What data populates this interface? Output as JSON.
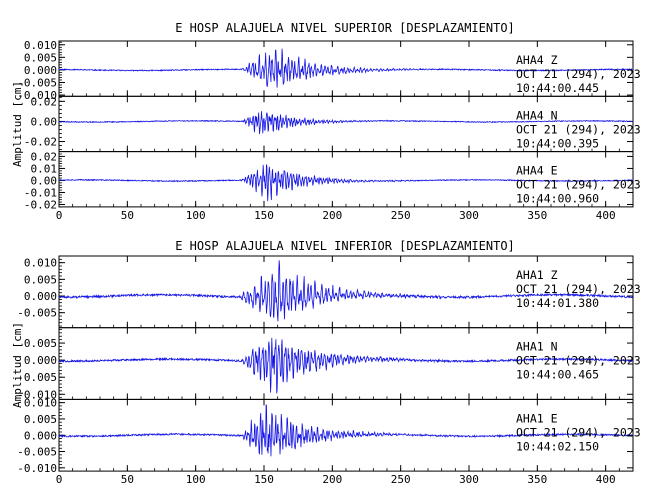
{
  "chart_data": [
    {
      "type": "line",
      "title": "E HOSP ALAJUELA NIVEL SUPERIOR [DESPLAZAMIENTO]",
      "ylabel": "Amplitud [cm]",
      "xlabel": "",
      "xlim": [
        0,
        420
      ],
      "x_ticks": [
        0,
        50,
        100,
        150,
        200,
        250,
        300,
        350,
        400
      ],
      "grid": false,
      "panels": [
        {
          "station": "AHA4",
          "component": "Z",
          "date": "OCT 21 (294), 2023",
          "time": "10:44:00.445",
          "ylim": [
            -0.0105,
            0.0115
          ],
          "y_ticks": [
            -0.01,
            -0.005,
            0.0,
            0.005,
            0.01
          ],
          "y_tick_labels": [
            "-0.010",
            "-0.005",
            "0.000",
            "0.005",
            "0.010"
          ],
          "signal": {
            "seed": 11,
            "noise": 0.0004,
            "peak": 0.0085,
            "onset": 133,
            "peak_t": 158,
            "decay": 28,
            "period": 2.4
          }
        },
        {
          "station": "AHA4",
          "component": "N",
          "date": "OCT 21 (294), 2023",
          "time": "10:44:00.395",
          "ylim": [
            -0.03,
            0.025
          ],
          "y_ticks": [
            -0.02,
            0.0,
            0.02
          ],
          "y_tick_labels": [
            "-0.02",
            "0.00",
            "0.02"
          ],
          "signal": {
            "seed": 23,
            "noise": 0.0009,
            "peak": 0.014,
            "onset": 133,
            "peak_t": 150,
            "decay": 22,
            "period": 2.0
          }
        },
        {
          "station": "AHA4",
          "component": "E",
          "date": "OCT 21 (294), 2023",
          "time": "10:44:00.960",
          "ylim": [
            -0.022,
            0.024
          ],
          "y_ticks": [
            -0.02,
            -0.01,
            0.0,
            0.01,
            0.02
          ],
          "y_tick_labels": [
            "-0.02",
            "-0.01",
            "0.00",
            "0.01",
            "0.02"
          ],
          "signal": {
            "seed": 37,
            "noise": 0.0008,
            "peak": 0.016,
            "onset": 133,
            "peak_t": 152,
            "decay": 24,
            "period": 2.2
          }
        }
      ]
    },
    {
      "type": "line",
      "title": "E HOSP ALAJUELA NIVEL INFERIOR [DESPLAZAMIENTO]",
      "ylabel": "Amplitud [cm]",
      "xlabel": "",
      "xlim": [
        0,
        420
      ],
      "x_ticks": [
        0,
        50,
        100,
        150,
        200,
        250,
        300,
        350,
        400
      ],
      "grid": false,
      "panels": [
        {
          "station": "AHA1",
          "component": "Z",
          "date": "OCT 21 (294), 2023",
          "time": "10:44:01.380",
          "ylim": [
            -0.0095,
            0.012
          ],
          "y_ticks": [
            -0.005,
            0.0,
            0.005,
            0.01
          ],
          "y_tick_labels": [
            "-0.005",
            "0.000",
            "0.005",
            "0.010"
          ],
          "signal": {
            "seed": 51,
            "noise": 0.0006,
            "peak": 0.0085,
            "onset": 130,
            "peak_t": 160,
            "decay": 30,
            "period": 2.6
          }
        },
        {
          "station": "AHA1",
          "component": "N",
          "date": "OCT 21 (294), 2023",
          "time": "10:44:00.465",
          "ylim": [
            -0.0115,
            0.0095
          ],
          "y_ticks": [
            -0.01,
            -0.005,
            0.0,
            0.005
          ],
          "y_tick_labels": [
            "-0.010",
            "-0.005",
            "0.000",
            "0.005"
          ],
          "signal": {
            "seed": 67,
            "noise": 0.0005,
            "peak": 0.0085,
            "onset": 133,
            "peak_t": 155,
            "decay": 30,
            "period": 2.4
          }
        },
        {
          "station": "AHA1",
          "component": "E",
          "date": "OCT 21 (294), 2023",
          "time": "10:44:02.150",
          "ylim": [
            -0.011,
            0.011
          ],
          "y_ticks": [
            -0.01,
            -0.005,
            0.0,
            0.005,
            0.01
          ],
          "y_tick_labels": [
            "-0.010",
            "-0.005",
            "0.000",
            "0.005",
            "0.010"
          ],
          "signal": {
            "seed": 83,
            "noise": 0.0005,
            "peak": 0.0085,
            "onset": 133,
            "peak_t": 152,
            "decay": 28,
            "period": 2.2
          }
        }
      ]
    }
  ],
  "colors": {
    "trace": "#1414e6",
    "frame": "#000000",
    "background": "#ffffff"
  }
}
